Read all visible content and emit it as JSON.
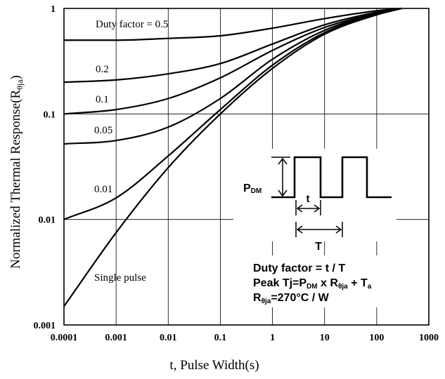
{
  "chart_data": {
    "type": "line",
    "title": "",
    "xlabel": "t, Pulse Width(s)",
    "ylabel_main": "Normalized Thermal Response(R",
    "ylabel_sub": "θja",
    "ylabel_close": ")",
    "xscale": "log",
    "yscale": "log",
    "xlim": [
      0.0001,
      1000
    ],
    "ylim": [
      0.001,
      1
    ],
    "grid": true,
    "x_ticks": [
      "0.0001",
      "0.001",
      "0.01",
      "0.1",
      "1",
      "10",
      "100",
      "1000"
    ],
    "x_tick_values": [
      0.0001,
      0.001,
      0.01,
      0.1,
      1,
      10,
      100,
      1000
    ],
    "y_ticks": [
      "1",
      "0.1",
      "0.01",
      "0.001"
    ],
    "y_tick_values": [
      1,
      0.1,
      0.01,
      0.001
    ],
    "series": [
      {
        "name": "Duty factor = 0.5",
        "x": [
          0.0001,
          0.001,
          0.01,
          0.1,
          1,
          10,
          100,
          300
        ],
        "y": [
          0.5,
          0.5,
          0.52,
          0.55,
          0.65,
          0.8,
          0.95,
          1.0
        ]
      },
      {
        "name": "0.2",
        "x": [
          0.0001,
          0.001,
          0.01,
          0.1,
          1,
          10,
          100,
          300
        ],
        "y": [
          0.2,
          0.21,
          0.24,
          0.3,
          0.46,
          0.7,
          0.92,
          1.0
        ]
      },
      {
        "name": "0.1",
        "x": [
          0.0001,
          0.001,
          0.01,
          0.1,
          1,
          10,
          100,
          300
        ],
        "y": [
          0.1,
          0.11,
          0.14,
          0.22,
          0.4,
          0.66,
          0.9,
          1.0
        ]
      },
      {
        "name": "0.05",
        "x": [
          0.0001,
          0.001,
          0.01,
          0.1,
          1,
          10,
          100,
          300
        ],
        "y": [
          0.052,
          0.056,
          0.075,
          0.14,
          0.33,
          0.62,
          0.89,
          1.0
        ]
      },
      {
        "name": "0.01",
        "x": [
          0.0001,
          0.001,
          0.01,
          0.1,
          1,
          10,
          100,
          300
        ],
        "y": [
          0.01,
          0.016,
          0.04,
          0.11,
          0.29,
          0.59,
          0.88,
          1.0
        ]
      },
      {
        "name": "Single pulse",
        "x": [
          0.0001,
          0.001,
          0.01,
          0.1,
          1,
          10,
          100,
          300
        ],
        "y": [
          0.0015,
          0.0075,
          0.031,
          0.1,
          0.27,
          0.57,
          0.87,
          1.0
        ]
      }
    ],
    "inset": {
      "pdm_main": "P",
      "pdm_sub": "DM",
      "t_label": "t",
      "T_label": "T",
      "line1": "Duty factor = t / T",
      "line2_a": "Peak Tj=P",
      "line2_sub1": "DM",
      "line2_b": " x R",
      "line2_sub2": "θja",
      "line2_c": " + T",
      "line2_sub3": "a",
      "line3_a": "R",
      "line3_sub": "θja",
      "line3_b": "=270°C / W"
    }
  }
}
